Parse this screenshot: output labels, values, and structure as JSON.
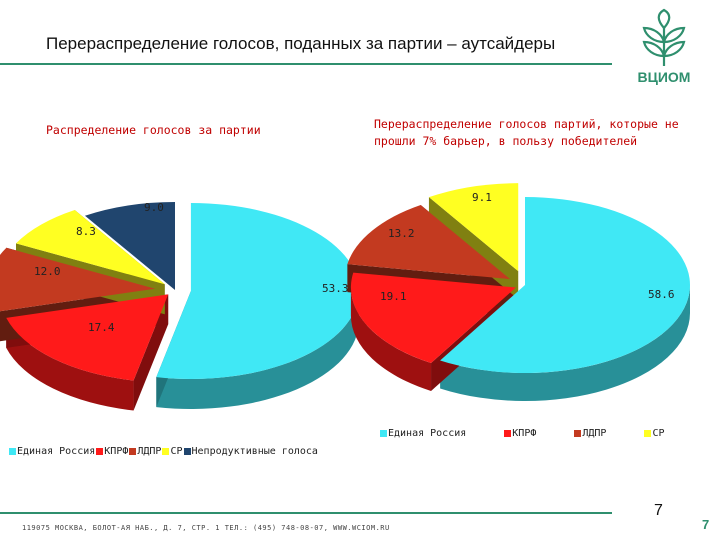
{
  "title": "Перераспределение голосов, поданных за партии – аутсайдеры",
  "logo_text": "ВЦИОМ",
  "footer": "119075 МОСКВА, БОЛОТ-АЯ НАБ., Д. 7, СТР. 1 ТЕЛ.: (495) 748-08-07, WWW.WCIOM.RU",
  "page_number": "7",
  "page_number_corner": "7",
  "colors": {
    "accent": "#2f8f6e",
    "ur": "#40e8f5",
    "kprf": "#ff1a1a",
    "ldpr": "#c33a20",
    "sr": "#ffff22",
    "unproductive": "#20456e"
  },
  "chart_data": [
    {
      "type": "pie",
      "title": "Распределение голосов за партии",
      "slices": [
        {
          "label": "Единая Россия",
          "value": 53.3,
          "color": "#40e8f5"
        },
        {
          "label": "КПРФ",
          "value": 17.4,
          "color": "#ff1a1a"
        },
        {
          "label": "ЛДПР",
          "value": 12.0,
          "color": "#c33a20"
        },
        {
          "label": "СР",
          "value": 8.3,
          "color": "#ffff22"
        },
        {
          "label": "Непродуктивные голоса",
          "value": 9.0,
          "color": "#20456e"
        }
      ],
      "data_labels": [
        "53.3",
        "17.4",
        "12.0",
        "8.3",
        "9.0"
      ],
      "legend": [
        "Единая Россия",
        "КПРФ",
        "ЛДПР",
        "СР",
        "Непродуктивные голоса"
      ],
      "legend_position": "bottom"
    },
    {
      "type": "pie",
      "title": "Перераспределение голосов партий, которые не прошли 7% барьер, в пользу победителей",
      "slices": [
        {
          "label": "Единая Россия",
          "value": 58.6,
          "color": "#40e8f5"
        },
        {
          "label": "КПРФ",
          "value": 19.1,
          "color": "#ff1a1a"
        },
        {
          "label": "ЛДПР",
          "value": 13.2,
          "color": "#c33a20"
        },
        {
          "label": "СР",
          "value": 9.1,
          "color": "#ffff22"
        }
      ],
      "data_labels": [
        "58.6",
        "19.1",
        "13.2",
        "9.1"
      ],
      "legend": [
        "Единая Россия",
        "КПРФ",
        "ЛДПР",
        "СР"
      ],
      "legend_position": "bottom"
    }
  ]
}
